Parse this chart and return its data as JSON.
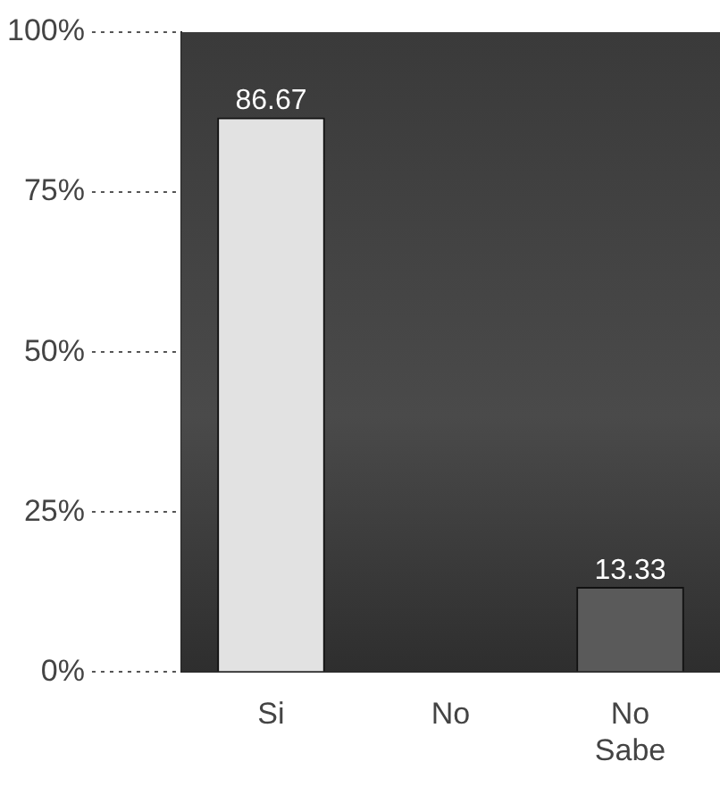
{
  "chart_data": {
    "type": "bar",
    "categories": [
      "Si",
      "No",
      "No Sabe"
    ],
    "values": [
      86.67,
      0,
      13.33
    ],
    "colors": [
      "#e2e2e2",
      "#e2e2e2",
      "#5a5a5a"
    ],
    "ylim": [
      0,
      100
    ],
    "yticks": [
      {
        "value": 0,
        "label": "0%"
      },
      {
        "value": 25,
        "label": "25%"
      },
      {
        "value": 50,
        "label": "50%"
      },
      {
        "value": 75,
        "label": "75%"
      },
      {
        "value": 100,
        "label": "100%"
      }
    ],
    "value_labels": [
      "86.67",
      null,
      "13.33"
    ],
    "grid": false,
    "legend": false
  }
}
